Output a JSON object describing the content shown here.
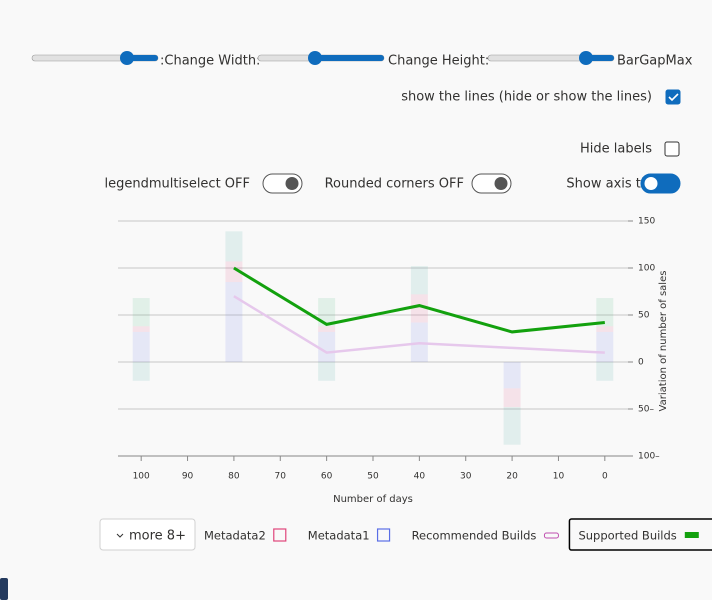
{
  "controls": {
    "width_label": ":Change Width:",
    "height_label": "Change Height:",
    "bargap_label": "BarGapMax",
    "show_lines": {
      "label": "show the lines (hide or show the lines)",
      "checked": true
    },
    "hide_labels": {
      "label": "Hide labels",
      "checked": false
    },
    "toggles": [
      {
        "label": "legendmultiselect OFF",
        "on": false
      },
      {
        "label": "Rounded corners OFF",
        "on": false
      },
      {
        "label": "Show axis titles",
        "on": true
      }
    ]
  },
  "legend": {
    "more_button": "more 8+"
  },
  "chart_data": {
    "type": "bar",
    "x_title": "Number of days",
    "y_title": "Variation of number of sales",
    "x": [
      100,
      80,
      60,
      40,
      20,
      0
    ],
    "xlim": [
      105,
      -5
    ],
    "xticks": [
      100,
      90,
      80,
      70,
      60,
      50,
      40,
      30,
      20,
      10,
      0
    ],
    "ylim": [
      -100,
      150
    ],
    "yticks": [
      150,
      100,
      50,
      0,
      {
        "value": -50,
        "label": "50–"
      },
      {
        "value": -100,
        "label": "100–"
      }
    ],
    "grid": true,
    "series": [
      {
        "name": "Metadata1",
        "type": "bar",
        "color": "#5a6ee6",
        "values": [
          32,
          85,
          32,
          42,
          -28,
          32
        ]
      },
      {
        "name": "Metadata2",
        "type": "bar",
        "color": "#e0457b",
        "values": [
          6,
          22,
          6,
          30,
          -20,
          6
        ]
      },
      {
        "type": "bar",
        "color": "#3cb371",
        "values": [
          30,
          null,
          30,
          null,
          null,
          30
        ]
      },
      {
        "type": "bar",
        "color": "#3aa6a0",
        "values": [
          -20,
          32,
          -20,
          30,
          -40,
          -20
        ]
      },
      {
        "name": "Recommended Builds",
        "type": "line",
        "color": "#e6c8ec",
        "values": [
          null,
          70,
          10,
          20,
          15,
          10
        ]
      },
      {
        "name": "Supported Builds",
        "type": "line",
        "color": "#13a10e",
        "values": [
          null,
          100,
          40,
          60,
          32,
          42
        ],
        "selected": true
      }
    ]
  }
}
